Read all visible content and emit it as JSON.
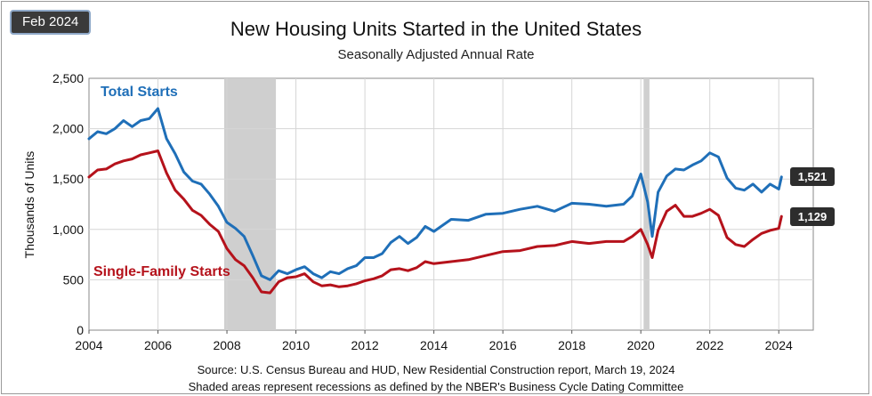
{
  "chart_data": {
    "type": "line",
    "badge": "Feb 2024",
    "title": "New Housing Units Started in the United States",
    "subtitle": "Seasonally Adjusted Annual Rate",
    "ylabel": "Thousands of Units",
    "xlabel": "",
    "xlim": [
      2004,
      2025
    ],
    "ylim": [
      0,
      2500
    ],
    "x_ticks": [
      2004,
      2006,
      2008,
      2010,
      2012,
      2014,
      2016,
      2018,
      2020,
      2022,
      2024
    ],
    "x_tick_labels": [
      "2004",
      "2006",
      "2008",
      "2010",
      "2012",
      "2014",
      "2016",
      "2018",
      "2020",
      "2022",
      "2024"
    ],
    "y_ticks": [
      0,
      500,
      1000,
      1500,
      2000,
      2500
    ],
    "y_tick_labels": [
      "0",
      "500",
      "1,000",
      "1,500",
      "2,000",
      "2,500"
    ],
    "grid": true,
    "recessions": [
      {
        "start": 2007.92,
        "end": 2009.42
      },
      {
        "start": 2020.08,
        "end": 2020.25
      }
    ],
    "series": [
      {
        "name": "Total Starts",
        "color": "#1f6fb8",
        "label": "Total Starts",
        "x": [
          2004.0,
          2004.25,
          2004.5,
          2004.75,
          2005.0,
          2005.25,
          2005.5,
          2005.75,
          2006.0,
          2006.25,
          2006.5,
          2006.75,
          2007.0,
          2007.25,
          2007.5,
          2007.75,
          2008.0,
          2008.25,
          2008.5,
          2008.75,
          2009.0,
          2009.25,
          2009.5,
          2009.75,
          2010.0,
          2010.25,
          2010.5,
          2010.75,
          2011.0,
          2011.25,
          2011.5,
          2011.75,
          2012.0,
          2012.25,
          2012.5,
          2012.75,
          2013.0,
          2013.25,
          2013.5,
          2013.75,
          2014.0,
          2014.5,
          2015.0,
          2015.5,
          2016.0,
          2016.5,
          2017.0,
          2017.5,
          2018.0,
          2018.5,
          2019.0,
          2019.5,
          2019.75,
          2020.0,
          2020.2,
          2020.33,
          2020.5,
          2020.75,
          2021.0,
          2021.25,
          2021.5,
          2021.75,
          2022.0,
          2022.25,
          2022.5,
          2022.75,
          2023.0,
          2023.25,
          2023.5,
          2023.75,
          2024.0,
          2024.08
        ],
        "values": [
          1900,
          1970,
          1950,
          2000,
          2080,
          2020,
          2080,
          2100,
          2200,
          1900,
          1750,
          1570,
          1480,
          1450,
          1350,
          1230,
          1070,
          1010,
          930,
          740,
          540,
          500,
          590,
          560,
          600,
          630,
          560,
          520,
          580,
          560,
          610,
          640,
          720,
          720,
          760,
          870,
          930,
          860,
          920,
          1030,
          980,
          1100,
          1090,
          1150,
          1160,
          1200,
          1230,
          1180,
          1260,
          1250,
          1230,
          1250,
          1330,
          1550,
          1270,
          930,
          1370,
          1530,
          1600,
          1590,
          1640,
          1680,
          1760,
          1720,
          1510,
          1410,
          1390,
          1450,
          1370,
          1450,
          1400,
          1521
        ],
        "end_label": "1,521"
      },
      {
        "name": "Single-Family Starts",
        "color": "#b5121b",
        "label": "Single-Family Starts",
        "x": [
          2004.0,
          2004.25,
          2004.5,
          2004.75,
          2005.0,
          2005.25,
          2005.5,
          2005.75,
          2006.0,
          2006.25,
          2006.5,
          2006.75,
          2007.0,
          2007.25,
          2007.5,
          2007.75,
          2008.0,
          2008.25,
          2008.5,
          2008.75,
          2009.0,
          2009.25,
          2009.5,
          2009.75,
          2010.0,
          2010.25,
          2010.5,
          2010.75,
          2011.0,
          2011.25,
          2011.5,
          2011.75,
          2012.0,
          2012.25,
          2012.5,
          2012.75,
          2013.0,
          2013.25,
          2013.5,
          2013.75,
          2014.0,
          2014.5,
          2015.0,
          2015.5,
          2016.0,
          2016.5,
          2017.0,
          2017.5,
          2018.0,
          2018.5,
          2019.0,
          2019.5,
          2019.75,
          2020.0,
          2020.2,
          2020.33,
          2020.5,
          2020.75,
          2021.0,
          2021.25,
          2021.5,
          2021.75,
          2022.0,
          2022.25,
          2022.5,
          2022.75,
          2023.0,
          2023.25,
          2023.5,
          2023.75,
          2024.0,
          2024.08
        ],
        "values": [
          1520,
          1590,
          1600,
          1650,
          1680,
          1700,
          1740,
          1760,
          1780,
          1560,
          1390,
          1300,
          1190,
          1140,
          1050,
          980,
          810,
          700,
          640,
          520,
          380,
          370,
          480,
          520,
          530,
          560,
          480,
          440,
          450,
          430,
          440,
          460,
          490,
          510,
          540,
          600,
          610,
          590,
          620,
          680,
          660,
          680,
          700,
          740,
          780,
          790,
          830,
          840,
          880,
          860,
          880,
          880,
          930,
          1000,
          850,
          720,
          990,
          1180,
          1240,
          1130,
          1130,
          1160,
          1200,
          1140,
          920,
          850,
          830,
          900,
          960,
          990,
          1010,
          1129
        ],
        "end_label": "1,129"
      }
    ],
    "source_note": "Source:  U.S. Census Bureau and HUD, New Residential Construction report, March 19, 2024",
    "recession_note": "Shaded areas represent recessions as defined by the NBER's Business Cycle Dating Committee"
  }
}
